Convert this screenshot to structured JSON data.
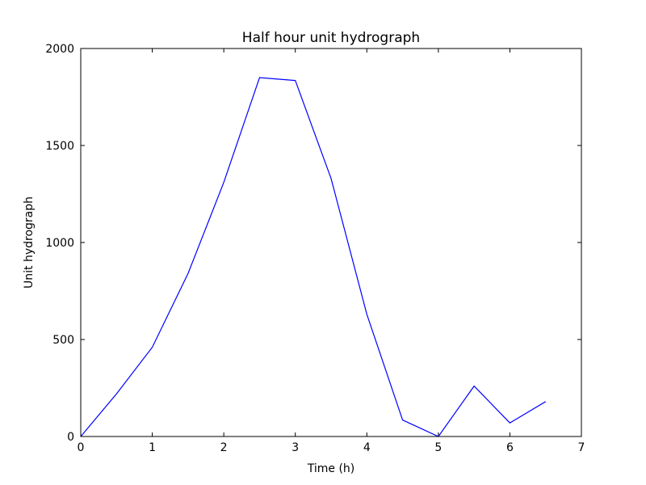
{
  "chart_data": {
    "type": "line",
    "title": "Half hour unit hydrograph",
    "xlabel": "Time (h)",
    "ylabel": "Unit hydrograph",
    "xlim": [
      0,
      7
    ],
    "ylim": [
      0,
      2000
    ],
    "xticks": [
      0,
      1,
      2,
      3,
      4,
      5,
      6,
      7
    ],
    "yticks": [
      0,
      500,
      1000,
      1500,
      2000
    ],
    "grid": false,
    "series": [
      {
        "color": "#0000ff",
        "x": [
          0,
          0.5,
          1,
          1.5,
          2,
          2.5,
          3,
          3.5,
          4,
          4.5,
          5,
          5.5,
          6,
          6.5
        ],
        "y": [
          0,
          220,
          460,
          840,
          1310,
          1850,
          1835,
          1330,
          630,
          85,
          0,
          260,
          70,
          180
        ]
      }
    ]
  }
}
